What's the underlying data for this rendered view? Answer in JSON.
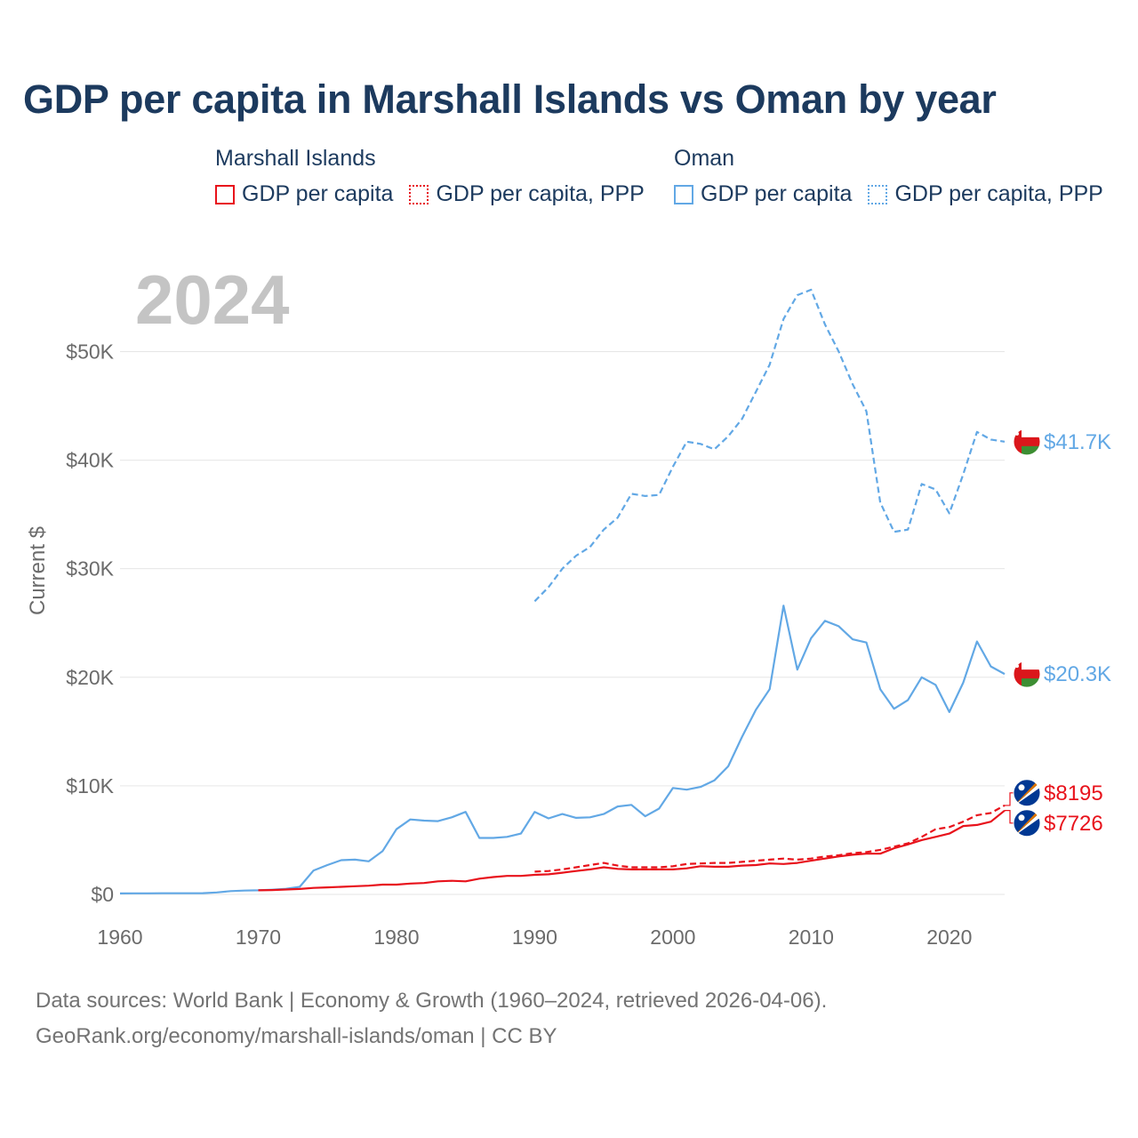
{
  "title": "GDP per capita in Marshall Islands vs Oman by year",
  "year_watermark": "2024",
  "legend": {
    "groups": [
      {
        "name": "Marshall Islands",
        "items": [
          "GDP per capita",
          "GDP per capita, PPP"
        ]
      },
      {
        "name": "Oman",
        "items": [
          "GDP per capita",
          "GDP per capita, PPP"
        ]
      }
    ]
  },
  "footer": {
    "line1": "Data sources: World Bank | Economy & Growth (1960–2024, retrieved 2026-04-06).",
    "line2": "GeoRank.org/economy/marshall-islands/oman | CC BY"
  },
  "colors": {
    "marshall": "#e8121b",
    "oman": "#62a8e5",
    "grid": "#e6e6e6"
  },
  "icons": {
    "marshall": "marshall-islands-flag-icon",
    "oman": "oman-flag-icon"
  },
  "chart_data": {
    "type": "line",
    "title": "GDP per capita in Marshall Islands vs Oman by year",
    "xlabel": "",
    "ylabel": "Current $",
    "xlim": [
      1960,
      2024
    ],
    "ylim": [
      0,
      57000
    ],
    "x_ticks": [
      1960,
      1970,
      1980,
      1990,
      2000,
      2010,
      2020
    ],
    "y_ticks": [
      0,
      10000,
      20000,
      30000,
      40000,
      50000
    ],
    "y_tick_labels": [
      "$0",
      "$10K",
      "$20K",
      "$30K",
      "$40K",
      "$50K"
    ],
    "grid": true,
    "series": [
      {
        "name": "Oman GDP per capita, PPP",
        "country": "oman",
        "style": "dashed",
        "end_label": "$41.7K",
        "x": [
          1990,
          1991,
          1992,
          1993,
          1994,
          1995,
          1996,
          1997,
          1998,
          1999,
          2000,
          2001,
          2002,
          2003,
          2004,
          2005,
          2006,
          2007,
          2008,
          2009,
          2010,
          2011,
          2012,
          2013,
          2014,
          2015,
          2016,
          2017,
          2018,
          2019,
          2020,
          2021,
          2022,
          2023,
          2024
        ],
        "values": [
          27000,
          28300,
          30000,
          31200,
          32000,
          33600,
          34700,
          36900,
          36700,
          36800,
          39400,
          41700,
          41500,
          41000,
          42200,
          43800,
          46300,
          48800,
          53000,
          55200,
          55700,
          52500,
          50000,
          47000,
          44500,
          36100,
          33400,
          33600,
          37800,
          37300,
          35100,
          38700,
          42600,
          41900,
          41700
        ]
      },
      {
        "name": "Oman GDP per capita",
        "country": "oman",
        "style": "solid",
        "end_label": "$20.3K",
        "x": [
          1960,
          1961,
          1962,
          1963,
          1964,
          1965,
          1966,
          1967,
          1968,
          1969,
          1970,
          1971,
          1972,
          1973,
          1974,
          1975,
          1976,
          1977,
          1978,
          1979,
          1980,
          1981,
          1982,
          1983,
          1984,
          1985,
          1986,
          1987,
          1988,
          1989,
          1990,
          1991,
          1992,
          1993,
          1994,
          1995,
          1996,
          1997,
          1998,
          1999,
          2000,
          2001,
          2002,
          2003,
          2004,
          2005,
          2006,
          2007,
          2008,
          2009,
          2010,
          2011,
          2012,
          2013,
          2014,
          2015,
          2016,
          2017,
          2018,
          2019,
          2020,
          2021,
          2022,
          2023,
          2024
        ],
        "values": [
          90,
          95,
          100,
          105,
          110,
          110,
          115,
          180,
          300,
          350,
          380,
          430,
          520,
          700,
          2200,
          2700,
          3150,
          3200,
          3050,
          4000,
          6000,
          6900,
          6800,
          6750,
          7100,
          7600,
          5200,
          5200,
          5300,
          5600,
          7600,
          7000,
          7400,
          7050,
          7100,
          7400,
          8100,
          8250,
          7200,
          7900,
          9800,
          9650,
          9900,
          10500,
          11800,
          14500,
          17000,
          18900,
          26600,
          20700,
          23600,
          25200,
          24700,
          23500,
          23200,
          18900,
          17100,
          17900,
          20000,
          19300,
          16800,
          19500,
          23300,
          21000,
          20300
        ]
      },
      {
        "name": "Marshall Islands GDP per capita, PPP",
        "country": "marshall",
        "style": "dashed",
        "end_label": "$8195",
        "x": [
          1990,
          1991,
          1992,
          1993,
          1994,
          1995,
          1996,
          1997,
          1998,
          1999,
          2000,
          2001,
          2002,
          2003,
          2004,
          2005,
          2006,
          2007,
          2008,
          2009,
          2010,
          2011,
          2012,
          2013,
          2014,
          2015,
          2016,
          2017,
          2018,
          2019,
          2020,
          2021,
          2022,
          2023,
          2024
        ],
        "values": [
          2100,
          2150,
          2300,
          2500,
          2700,
          2900,
          2650,
          2500,
          2500,
          2500,
          2600,
          2800,
          2850,
          2900,
          2900,
          3000,
          3100,
          3200,
          3300,
          3200,
          3300,
          3500,
          3600,
          3800,
          3900,
          4100,
          4400,
          4700,
          5300,
          6000,
          6200,
          6700,
          7300,
          7500,
          8195
        ]
      },
      {
        "name": "Marshall Islands GDP per capita",
        "country": "marshall",
        "style": "solid",
        "end_label": "$7726",
        "x": [
          1970,
          1971,
          1972,
          1973,
          1974,
          1975,
          1976,
          1977,
          1978,
          1979,
          1980,
          1981,
          1982,
          1983,
          1984,
          1985,
          1986,
          1987,
          1988,
          1989,
          1990,
          1991,
          1992,
          1993,
          1994,
          1995,
          1996,
          1997,
          1998,
          1999,
          2000,
          2001,
          2002,
          2003,
          2004,
          2005,
          2006,
          2007,
          2008,
          2009,
          2010,
          2011,
          2012,
          2013,
          2014,
          2015,
          2016,
          2017,
          2018,
          2019,
          2020,
          2021,
          2022,
          2023,
          2024
        ],
        "values": [
          380,
          400,
          450,
          500,
          600,
          650,
          700,
          750,
          800,
          900,
          900,
          1000,
          1050,
          1200,
          1250,
          1200,
          1450,
          1600,
          1700,
          1700,
          1800,
          1850,
          2000,
          2150,
          2300,
          2500,
          2350,
          2300,
          2300,
          2300,
          2300,
          2400,
          2600,
          2550,
          2550,
          2650,
          2700,
          2850,
          2800,
          2900,
          3100,
          3300,
          3500,
          3650,
          3750,
          3750,
          4250,
          4600,
          5000,
          5300,
          5600,
          6300,
          6400,
          6700,
          7726
        ]
      }
    ]
  }
}
